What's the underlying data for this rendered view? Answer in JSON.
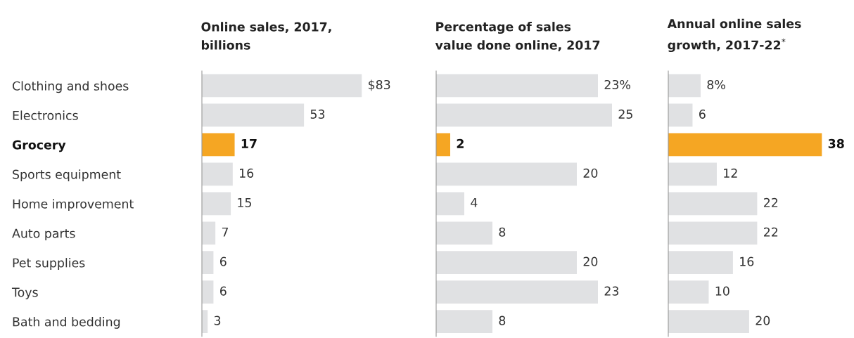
{
  "chart_data": [
    {
      "type": "bar",
      "orientation": "horizontal",
      "title": "Online sales, 2017,\nbillions",
      "tick_labels": "y",
      "categories": [
        "Clothing and shoes",
        "Electronics",
        "Grocery",
        "Sports equipment",
        "Home improvement",
        "Auto parts",
        "Pet supplies",
        "Toys",
        "Bath and bedding"
      ],
      "values": [
        83,
        53,
        17,
        16,
        15,
        7,
        6,
        6,
        3
      ],
      "value_labels": [
        "$83",
        "53",
        "17",
        "16",
        "15",
        "7",
        "6",
        "6",
        "3"
      ],
      "colors": [
        "#e0e1e3",
        "#e0e1e3",
        "#f5a623",
        "#e0e1e3",
        "#e0e1e3",
        "#e0e1e3",
        "#e0e1e3",
        "#e0e1e3",
        "#e0e1e3"
      ]
    },
    {
      "type": "bar",
      "orientation": "horizontal",
      "title": "Percentage of sales\nvalue done online, 2017",
      "tick_labels": false,
      "categories": [
        null,
        null,
        null,
        null,
        null,
        null,
        null,
        null,
        null
      ],
      "values": [
        23,
        25,
        2,
        20,
        4,
        8,
        20,
        23,
        8
      ],
      "value_labels": [
        "23%",
        "25",
        "2",
        "20",
        "4",
        "8",
        "20",
        "23",
        "8"
      ],
      "colors": [
        "#e0e1e3",
        "#e0e1e3",
        "#f5a623",
        "#e0e1e3",
        "#e0e1e3",
        "#e0e1e3",
        "#e0e1e3",
        "#e0e1e3",
        "#e0e1e3"
      ]
    },
    {
      "type": "bar",
      "orientation": "horizontal",
      "title": "Annual online sales\ngrowth, 2017-22$^{*}$",
      "tick_labels": false,
      "categories": [
        null,
        null,
        null,
        null,
        null,
        null,
        null,
        null,
        null
      ],
      "values": [
        8,
        6,
        38,
        12,
        22,
        22,
        16,
        10,
        20
      ],
      "value_labels": [
        "8%",
        "6",
        "38",
        "12",
        "22",
        "22",
        "16",
        "10",
        "20"
      ],
      "colors": [
        "#e0e1e3",
        "#e0e1e3",
        "#f5a623",
        "#e0e1e3",
        "#e0e1e3",
        "#e0e1e3",
        "#e0e1e3",
        "#e0e1e3",
        "#e0e1e3"
      ]
    }
  ]
}
